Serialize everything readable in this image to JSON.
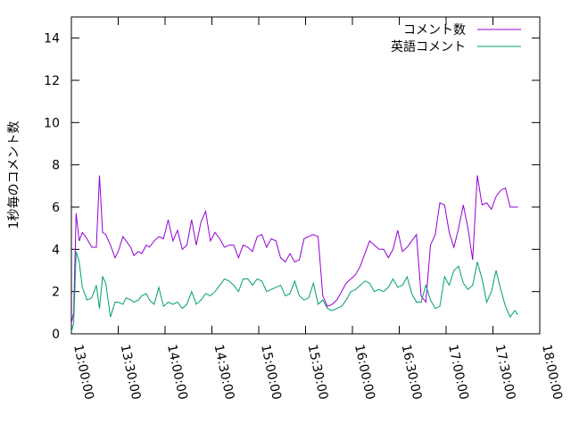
{
  "chart_data": {
    "type": "line",
    "title": "",
    "xlabel": "",
    "ylabel": "1秒毎のコメント数",
    "ylim": [
      0,
      15
    ],
    "y_ticks": [
      0,
      2,
      4,
      6,
      8,
      10,
      12,
      14
    ],
    "x_ticks": [
      "13:00:00",
      "13:30:00",
      "14:00:00",
      "14:30:00",
      "15:00:00",
      "15:30:00",
      "16:00:00",
      "16:30:00",
      "17:00:00",
      "17:30:00",
      "18:00:00"
    ],
    "x_unit": "minutes since 13:00:00",
    "xlim": [
      0,
      300
    ],
    "grid": false,
    "legend_position": "top-right",
    "colors": {
      "series1": "#9400d3",
      "series2": "#009e73",
      "axis": "#000000"
    },
    "series": [
      {
        "name": "コメント数",
        "color": "#9400d3",
        "x": [
          0,
          1.5,
          3,
          5,
          7,
          10,
          13,
          16,
          18,
          20,
          22,
          25,
          28,
          30,
          33,
          35,
          38,
          40,
          43,
          45,
          48,
          50,
          53,
          56,
          59,
          62,
          65,
          68,
          71,
          74,
          77,
          80,
          83,
          86,
          89,
          92,
          95,
          98,
          101,
          104,
          107,
          110,
          113,
          116,
          119,
          122,
          125,
          128,
          131,
          134,
          137,
          140,
          143,
          146,
          149,
          152,
          155,
          158,
          161,
          164,
          167,
          170,
          173,
          176,
          179,
          182,
          185,
          188,
          191,
          194,
          197,
          200,
          203,
          206,
          209,
          212,
          215,
          218,
          221,
          224,
          227,
          230,
          233,
          236,
          239,
          242,
          245,
          248,
          251,
          254,
          257,
          260,
          263,
          266,
          269,
          272,
          275,
          278,
          281,
          284,
          286
        ],
        "values": [
          0.5,
          1.0,
          5.7,
          4.4,
          4.8,
          4.5,
          4.1,
          4.1,
          7.5,
          4.8,
          4.7,
          4.2,
          3.6,
          3.9,
          4.6,
          4.4,
          4.1,
          3.7,
          3.9,
          3.8,
          4.2,
          4.1,
          4.4,
          4.6,
          4.5,
          5.4,
          4.4,
          4.9,
          4.0,
          4.2,
          5.4,
          4.2,
          5.3,
          5.8,
          4.4,
          4.8,
          4.5,
          4.1,
          4.2,
          4.2,
          3.6,
          4.2,
          4.1,
          3.9,
          4.6,
          4.7,
          4.1,
          4.5,
          4.4,
          3.6,
          3.4,
          3.8,
          3.4,
          3.5,
          4.5,
          4.6,
          4.7,
          4.6,
          1.8,
          1.3,
          1.4,
          1.6,
          2.0,
          2.4,
          2.6,
          2.8,
          3.2,
          3.8,
          4.4,
          4.2,
          4.0,
          4.0,
          3.6,
          4.0,
          4.9,
          3.9,
          4.1,
          4.4,
          4.7,
          1.8,
          1.5,
          4.2,
          4.7,
          6.2,
          6.1,
          4.8,
          4.1,
          5.0,
          6.1,
          5.0,
          3.5,
          7.5,
          6.1,
          6.2,
          5.9,
          6.5,
          6.8,
          6.9,
          6.0,
          6.0,
          6.0
        ]
      },
      {
        "name": "英語コメント",
        "color": "#009e73",
        "x": [
          0,
          1.5,
          3,
          5,
          7,
          10,
          13,
          16,
          18,
          20,
          22,
          25,
          28,
          30,
          33,
          35,
          38,
          40,
          43,
          45,
          48,
          50,
          53,
          56,
          59,
          62,
          65,
          68,
          71,
          74,
          77,
          80,
          83,
          86,
          89,
          92,
          95,
          98,
          101,
          104,
          107,
          110,
          113,
          116,
          119,
          122,
          125,
          128,
          131,
          134,
          137,
          140,
          143,
          146,
          149,
          152,
          155,
          158,
          161,
          164,
          167,
          170,
          173,
          176,
          179,
          182,
          185,
          188,
          191,
          194,
          197,
          200,
          203,
          206,
          209,
          212,
          215,
          218,
          221,
          224,
          227,
          230,
          233,
          236,
          239,
          242,
          245,
          248,
          251,
          254,
          257,
          260,
          263,
          266,
          269,
          272,
          275,
          278,
          281,
          284,
          286
        ],
        "values": [
          0.1,
          0.5,
          3.9,
          3.4,
          2.2,
          1.6,
          1.7,
          2.3,
          1.2,
          2.7,
          2.4,
          0.8,
          1.5,
          1.5,
          1.4,
          1.7,
          1.6,
          1.5,
          1.6,
          1.8,
          1.9,
          1.6,
          1.4,
          2.2,
          1.3,
          1.5,
          1.4,
          1.5,
          1.2,
          1.4,
          2.0,
          1.4,
          1.6,
          1.9,
          1.8,
          2.0,
          2.3,
          2.6,
          2.5,
          2.3,
          2.0,
          2.6,
          2.6,
          2.3,
          2.6,
          2.5,
          2.0,
          2.1,
          2.2,
          2.3,
          1.8,
          1.9,
          2.5,
          1.8,
          1.6,
          1.7,
          2.4,
          1.4,
          1.6,
          1.2,
          1.1,
          1.2,
          1.3,
          1.6,
          2.0,
          2.1,
          2.3,
          2.5,
          2.4,
          2.0,
          2.1,
          2.0,
          2.2,
          2.6,
          2.2,
          2.3,
          2.7,
          1.9,
          1.5,
          1.5,
          2.3,
          1.6,
          1.2,
          1.3,
          2.7,
          2.3,
          3.0,
          3.2,
          2.4,
          2.1,
          2.3,
          3.4,
          2.6,
          1.5,
          2.0,
          3.0,
          2.1,
          1.3,
          0.8,
          1.1,
          0.9
        ]
      }
    ]
  }
}
